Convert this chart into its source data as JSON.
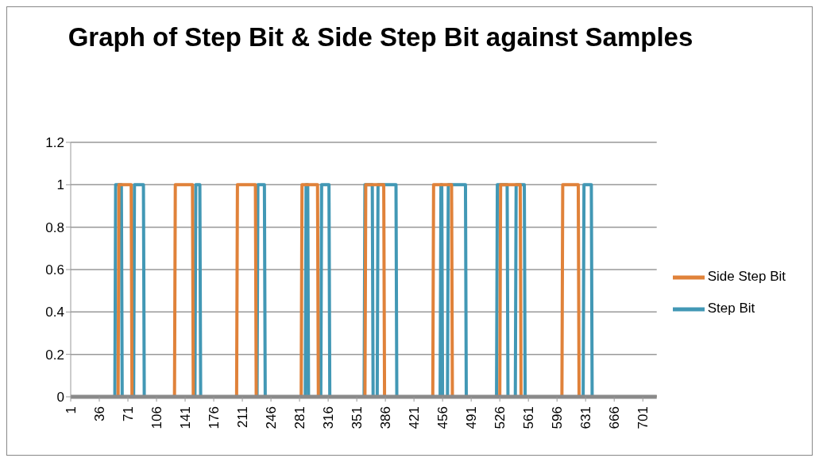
{
  "chart_data": {
    "type": "line",
    "title": "Graph of Step Bit & Side Step Bit against Samples",
    "series": [
      {
        "name": "Step Bit",
        "color": "#4298b5",
        "x": [
          1,
          55,
          56,
          63,
          64,
          78,
          79,
          90,
          91,
          153,
          154,
          159,
          160,
          229,
          230,
          238,
          239,
          288,
          289,
          291,
          292,
          307,
          308,
          317,
          318,
          360,
          361,
          370,
          371,
          376,
          377,
          399,
          400,
          453,
          454,
          455,
          456,
          462,
          463,
          484,
          485,
          522,
          523,
          535,
          536,
          545,
          546,
          556,
          557,
          628,
          629,
          638,
          639,
          718
        ],
        "values": [
          0,
          0,
          1,
          1,
          0,
          0,
          1,
          1,
          0,
          0,
          1,
          1,
          0,
          0,
          1,
          1,
          0,
          0,
          1,
          1,
          0,
          0,
          1,
          1,
          0,
          0,
          1,
          1,
          0,
          0,
          1,
          1,
          0,
          0,
          1,
          1,
          0,
          0,
          1,
          1,
          0,
          0,
          1,
          1,
          0,
          0,
          1,
          1,
          0,
          0,
          1,
          1,
          0,
          0
        ]
      },
      {
        "name": "Side Step Bit",
        "color": "#e0823a",
        "x": [
          1,
          59,
          60,
          75,
          76,
          128,
          129,
          150,
          151,
          204,
          205,
          227,
          228,
          283,
          284,
          303,
          304,
          361,
          362,
          384,
          385,
          444,
          445,
          467,
          468,
          526,
          527,
          551,
          552,
          602,
          603,
          622,
          623,
          718
        ],
        "values": [
          0,
          0,
          1,
          1,
          0,
          0,
          1,
          1,
          0,
          0,
          1,
          1,
          0,
          0,
          1,
          1,
          0,
          0,
          1,
          1,
          0,
          0,
          1,
          1,
          0,
          0,
          1,
          1,
          0,
          0,
          1,
          1,
          0,
          0
        ]
      }
    ],
    "xlim": [
      1,
      718
    ],
    "xticks": [
      1,
      36,
      71,
      106,
      141,
      176,
      211,
      246,
      281,
      316,
      351,
      386,
      421,
      456,
      491,
      526,
      561,
      596,
      631,
      666,
      701
    ],
    "ylim": [
      0,
      1.2
    ],
    "yticks": [
      0,
      0.2,
      0.4,
      0.6,
      0.8,
      1,
      1.2
    ],
    "grid": "y",
    "legend": "right",
    "marker": "none",
    "line_style": "solid"
  }
}
